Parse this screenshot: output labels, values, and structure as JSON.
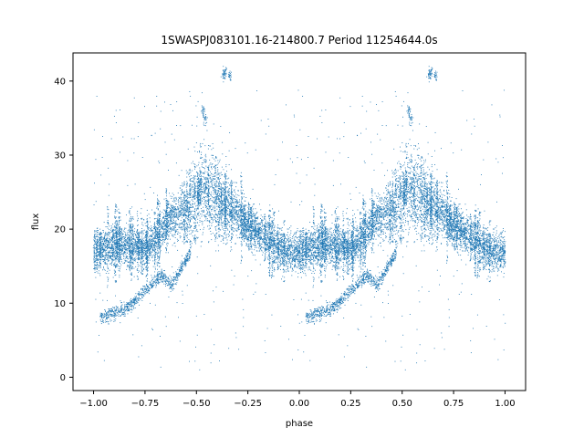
{
  "chart_data": {
    "type": "scatter",
    "title": "1SWASPJ083101.16-214800.7 Period 11254644.0s",
    "xlabel": "phase",
    "ylabel": "flux",
    "xlim": [
      -1.1,
      1.1
    ],
    "ylim": [
      -1.8,
      43.8
    ],
    "x_ticks": [
      -1.0,
      -0.75,
      -0.5,
      -0.25,
      0.0,
      0.25,
      0.5,
      0.75,
      1.0
    ],
    "x_tick_labels": [
      "−1.00",
      "−0.75",
      "−0.50",
      "−0.25",
      "0.00",
      "0.25",
      "0.50",
      "0.75",
      "1.00"
    ],
    "y_ticks": [
      0,
      10,
      20,
      30,
      40
    ],
    "y_tick_labels": [
      "0",
      "10",
      "20",
      "30",
      "40"
    ],
    "grid": false,
    "legend": "none",
    "point_color": "#1f77b4",
    "series": [
      {
        "folded": true,
        "trend": {
          "phase": [
            0.0,
            0.05,
            0.1,
            0.15,
            0.2,
            0.25,
            0.3,
            0.35,
            0.4,
            0.45,
            0.5,
            0.52,
            0.55,
            0.6,
            0.65,
            0.7,
            0.75,
            0.8,
            0.85,
            0.9,
            0.95,
            1.0
          ],
          "flux": [
            17.0,
            17.5,
            18.0,
            18.0,
            17.8,
            17.5,
            18.5,
            21.0,
            22.0,
            22.5,
            24.0,
            26.0,
            25.5,
            24.0,
            23.0,
            22.0,
            20.5,
            19.5,
            18.5,
            17.5,
            17.0,
            17.0
          ]
        },
        "lower_branch": {
          "phase": [
            0.03,
            0.08,
            0.12,
            0.17,
            0.22,
            0.28,
            0.33,
            0.38,
            0.42,
            0.47
          ],
          "flux": [
            8.2,
            8.5,
            9.0,
            9.5,
            11.0,
            12.5,
            14.0,
            12.5,
            14.5,
            17.0
          ]
        },
        "high_outliers": {
          "phase": [
            0.53,
            0.54,
            0.63,
            0.64,
            0.66
          ],
          "flux": [
            36.0,
            35.0,
            41.0,
            41.2,
            40.8
          ]
        }
      }
    ]
  }
}
